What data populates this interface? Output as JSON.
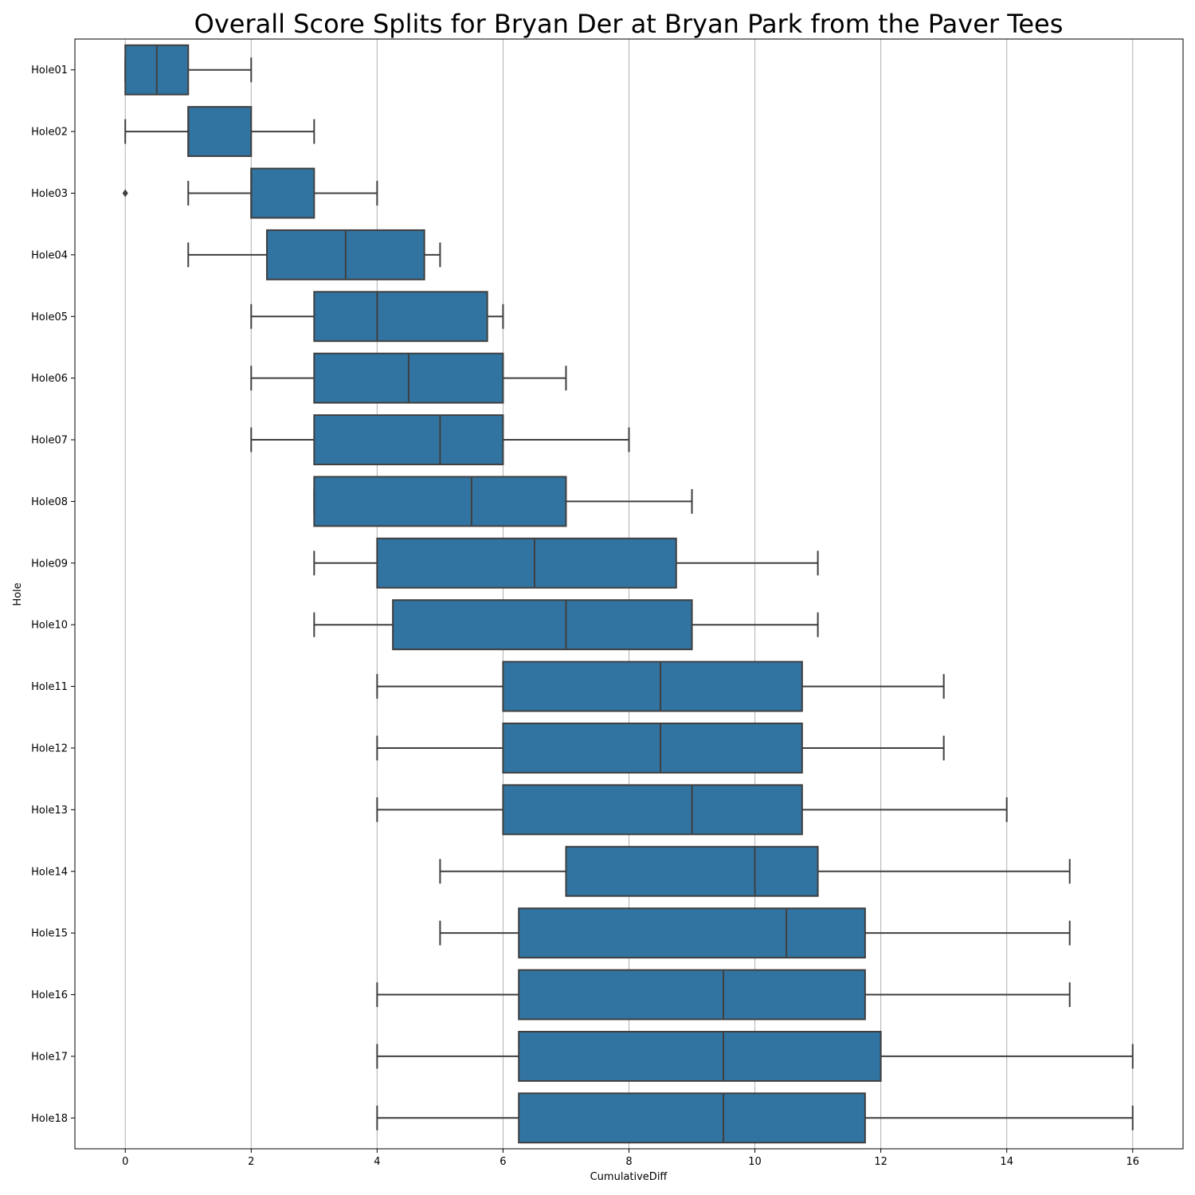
{
  "chart_data": {
    "type": "boxplot",
    "orientation": "horizontal",
    "title": "Overall Score Splits for Bryan Der at Bryan Park from the Paver Tees",
    "xlabel": "CumulativeDiff",
    "ylabel": "Hole",
    "xlim": [
      -0.8,
      16.8
    ],
    "xticks": [
      0,
      2,
      4,
      6,
      8,
      10,
      12,
      14,
      16
    ],
    "grid": "vertical",
    "box_color": "#3274a1",
    "line_color": "#3f3f3f",
    "categories": [
      "Hole01",
      "Hole02",
      "Hole03",
      "Hole04",
      "Hole05",
      "Hole06",
      "Hole07",
      "Hole08",
      "Hole09",
      "Hole10",
      "Hole11",
      "Hole12",
      "Hole13",
      "Hole14",
      "Hole15",
      "Hole16",
      "Hole17",
      "Hole18"
    ],
    "boxes": [
      {
        "hole": "Hole01",
        "min": 0,
        "q1": 0,
        "median": 0.5,
        "q3": 1,
        "max": 2,
        "outliers": []
      },
      {
        "hole": "Hole02",
        "min": 0,
        "q1": 1,
        "median": 1,
        "q3": 2,
        "max": 3,
        "outliers": []
      },
      {
        "hole": "Hole03",
        "min": 1,
        "q1": 2,
        "median": 2,
        "q3": 3,
        "max": 4,
        "outliers": [
          0
        ]
      },
      {
        "hole": "Hole04",
        "min": 1,
        "q1": 2.25,
        "median": 3.5,
        "q3": 4.75,
        "max": 5,
        "outliers": []
      },
      {
        "hole": "Hole05",
        "min": 2,
        "q1": 3,
        "median": 4,
        "q3": 5.75,
        "max": 6,
        "outliers": []
      },
      {
        "hole": "Hole06",
        "min": 2,
        "q1": 3,
        "median": 4.5,
        "q3": 6,
        "max": 7,
        "outliers": []
      },
      {
        "hole": "Hole07",
        "min": 2,
        "q1": 3,
        "median": 5,
        "q3": 6,
        "max": 8,
        "outliers": []
      },
      {
        "hole": "Hole08",
        "min": 3,
        "q1": 3,
        "median": 5.5,
        "q3": 7,
        "max": 9,
        "outliers": []
      },
      {
        "hole": "Hole09",
        "min": 3,
        "q1": 4,
        "median": 6.5,
        "q3": 8.75,
        "max": 11,
        "outliers": []
      },
      {
        "hole": "Hole10",
        "min": 3,
        "q1": 4.25,
        "median": 7,
        "q3": 9,
        "max": 11,
        "outliers": []
      },
      {
        "hole": "Hole11",
        "min": 4,
        "q1": 6,
        "median": 8.5,
        "q3": 10.75,
        "max": 13,
        "outliers": []
      },
      {
        "hole": "Hole12",
        "min": 4,
        "q1": 6,
        "median": 8.5,
        "q3": 10.75,
        "max": 13,
        "outliers": []
      },
      {
        "hole": "Hole13",
        "min": 4,
        "q1": 6,
        "median": 9,
        "q3": 10.75,
        "max": 14,
        "outliers": []
      },
      {
        "hole": "Hole14",
        "min": 5,
        "q1": 7,
        "median": 10,
        "q3": 11,
        "max": 15,
        "outliers": []
      },
      {
        "hole": "Hole15",
        "min": 5,
        "q1": 6.25,
        "median": 10.5,
        "q3": 11.75,
        "max": 15,
        "outliers": []
      },
      {
        "hole": "Hole16",
        "min": 4,
        "q1": 6.25,
        "median": 9.5,
        "q3": 11.75,
        "max": 15,
        "outliers": []
      },
      {
        "hole": "Hole17",
        "min": 4,
        "q1": 6.25,
        "median": 9.5,
        "q3": 12,
        "max": 16,
        "outliers": []
      },
      {
        "hole": "Hole18",
        "min": 4,
        "q1": 6.25,
        "median": 9.5,
        "q3": 11.75,
        "max": 16,
        "outliers": []
      }
    ]
  }
}
